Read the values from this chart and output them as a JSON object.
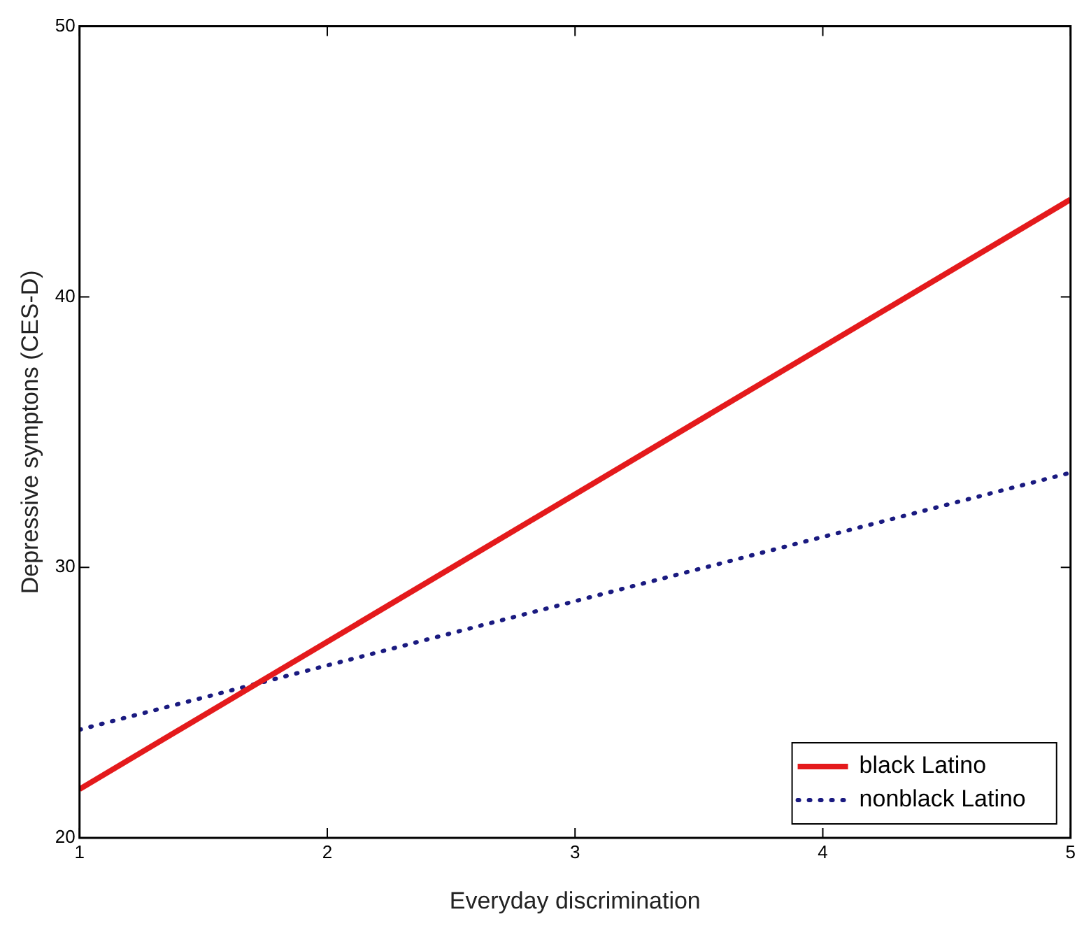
{
  "chart_data": {
    "type": "line",
    "xlabel": "Everyday discrimination",
    "ylabel": "Depressive symptons (CES-D)",
    "x": [
      1,
      5
    ],
    "series": [
      {
        "name": "black Latino",
        "color": "#e41a1c",
        "values": [
          21.8,
          43.6
        ],
        "line_style": "solid"
      },
      {
        "name": "nonblack Latino",
        "color": "#1a1a80",
        "values": [
          24.0,
          33.5
        ],
        "line_style": "dotted"
      }
    ],
    "xlim": [
      1,
      5
    ],
    "xticks": [
      1,
      2,
      3,
      4,
      5
    ],
    "ylim": [
      20,
      50
    ],
    "yticks": [
      20,
      30,
      40,
      50
    ],
    "grid": false,
    "legend": "bottom right",
    "marker": "none"
  }
}
